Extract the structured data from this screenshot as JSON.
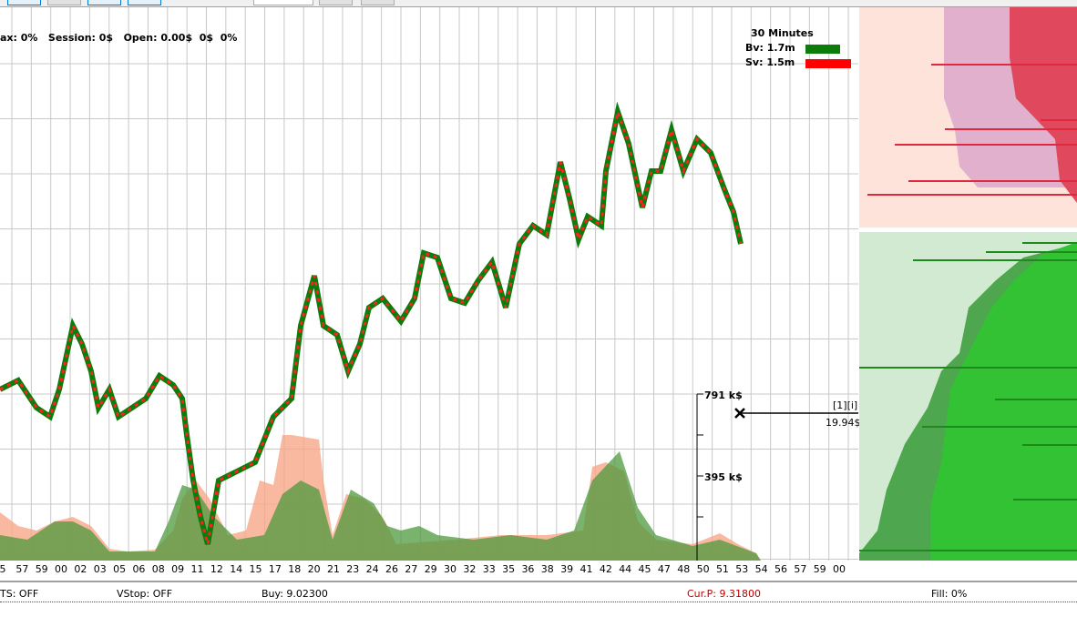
{
  "info_bar": "ax: 0%   Session: 0$   Open: 0.00$  0$  0%",
  "legend": {
    "title": "30 Minutes",
    "bv": "Bv: 1.7m",
    "sv": "Sv: 1.5m",
    "bv_color": "#0a7d0a",
    "sv_color": "#ff0000"
  },
  "x_labels": [
    "5",
    "57",
    "59",
    "00",
    "02",
    "03",
    "05",
    "06",
    "08",
    "09",
    "11",
    "12",
    "14",
    "15",
    "17",
    "18",
    "20",
    "21",
    "23",
    "24",
    "26",
    "27",
    "29",
    "30",
    "32",
    "33",
    "35",
    "36",
    "38",
    "39",
    "41",
    "42",
    "44",
    "45",
    "47",
    "48",
    "50",
    "51",
    "53",
    "54",
    "56",
    "57",
    "59",
    "00"
  ],
  "volume_scale": {
    "high": "791 k$",
    "mid": "395 k$"
  },
  "cursor": {
    "tag": "[1][i]",
    "value": "19.94$"
  },
  "status": {
    "ts": "TS: OFF",
    "vstop": "VStop: OFF",
    "buy": "Buy: 9.02300",
    "cur": "Cur.P: 9.31800",
    "fill": "Fill: 0%",
    "cur_color": "#c00000"
  }
}
